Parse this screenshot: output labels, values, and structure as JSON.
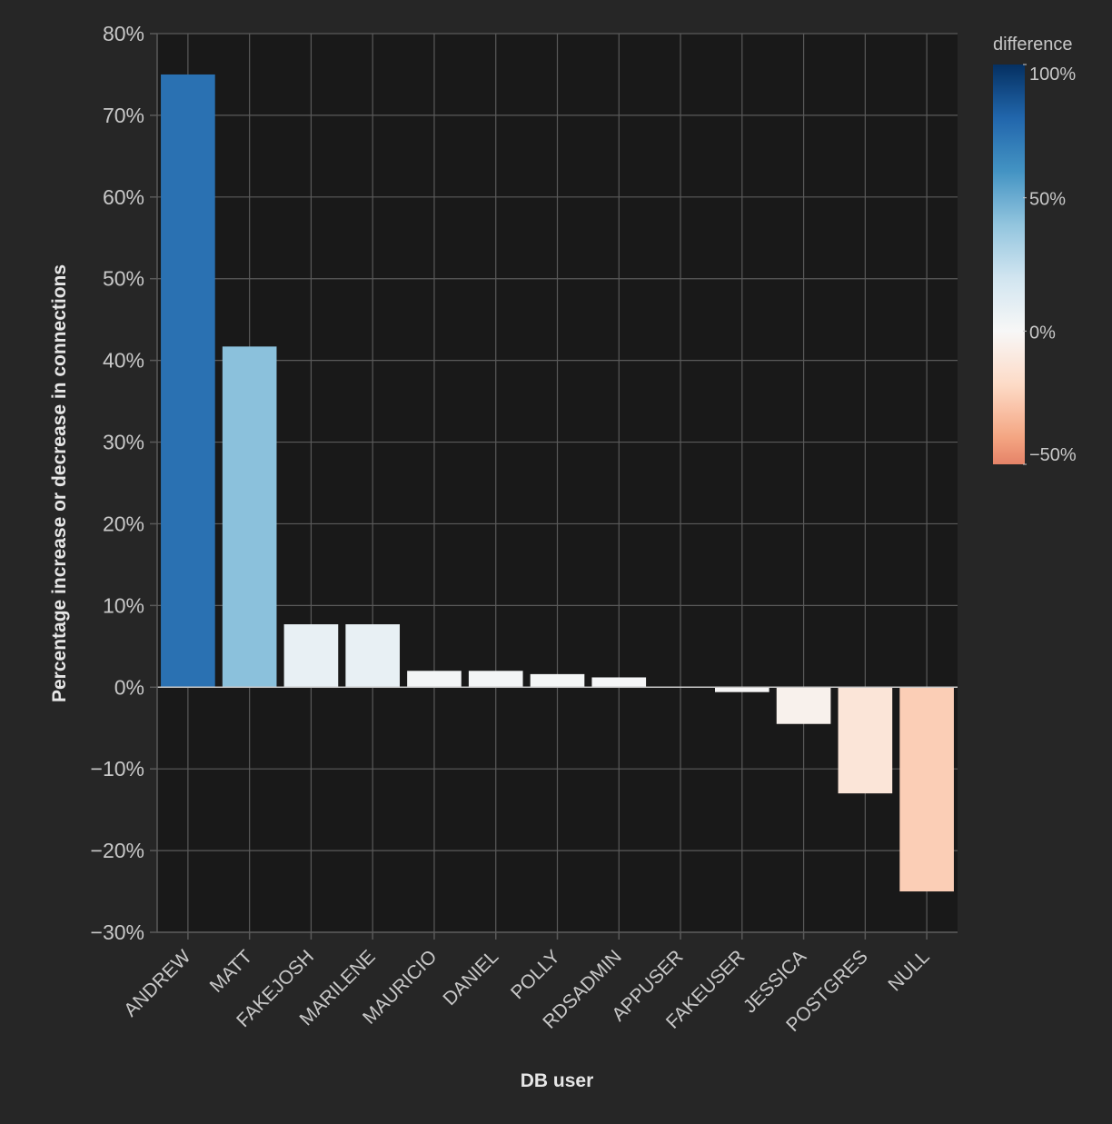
{
  "chart_data": {
    "type": "bar",
    "xlabel": "DB user",
    "ylabel": "Percentage increase or decrease in connections",
    "categories": [
      "ANDREW",
      "MATT",
      "FAKEJOSH",
      "MARILENE",
      "MAURICIO",
      "DANIEL",
      "POLLY",
      "RDSADMIN",
      "APPUSER",
      "FAKEUSER",
      "JESSICA",
      "POSTGRES",
      "NULL"
    ],
    "series": [
      {
        "values": [
          75.0,
          41.7,
          7.7,
          7.7,
          2.0,
          2.0,
          1.6,
          1.2,
          0.0,
          -0.6,
          -4.5,
          -13.0,
          -25.0
        ]
      }
    ],
    "ylim": [
      -30,
      80
    ],
    "yticks": [
      -30,
      -20,
      -10,
      0,
      10,
      20,
      30,
      40,
      50,
      60,
      70,
      80
    ],
    "ytick_format": "percent",
    "grid": true,
    "legend": {
      "title": "difference",
      "position": "top-right",
      "type": "colorbar",
      "domain": [
        -50,
        100
      ],
      "ticks": [
        100,
        50,
        0,
        -50
      ],
      "tick_labels": [
        "100%",
        "50%",
        "0%",
        "−50%"
      ],
      "colors": [
        "#67001f",
        "#b2182b",
        "#d6604d",
        "#f4a582",
        "#fddbc7",
        "#f7f7f7",
        "#d1e5f0",
        "#92c5de",
        "#4393c3",
        "#2166ac",
        "#053061"
      ],
      "color_domain": [
        -100,
        -80,
        -60,
        -40,
        -20,
        0,
        20,
        40,
        60,
        80,
        100
      ]
    },
    "colors": {
      "background": "#262626",
      "plot_background": "#191919",
      "grid": "#5a5a5a",
      "text": "#c8c8c8",
      "label": "#e6e6e6"
    }
  }
}
